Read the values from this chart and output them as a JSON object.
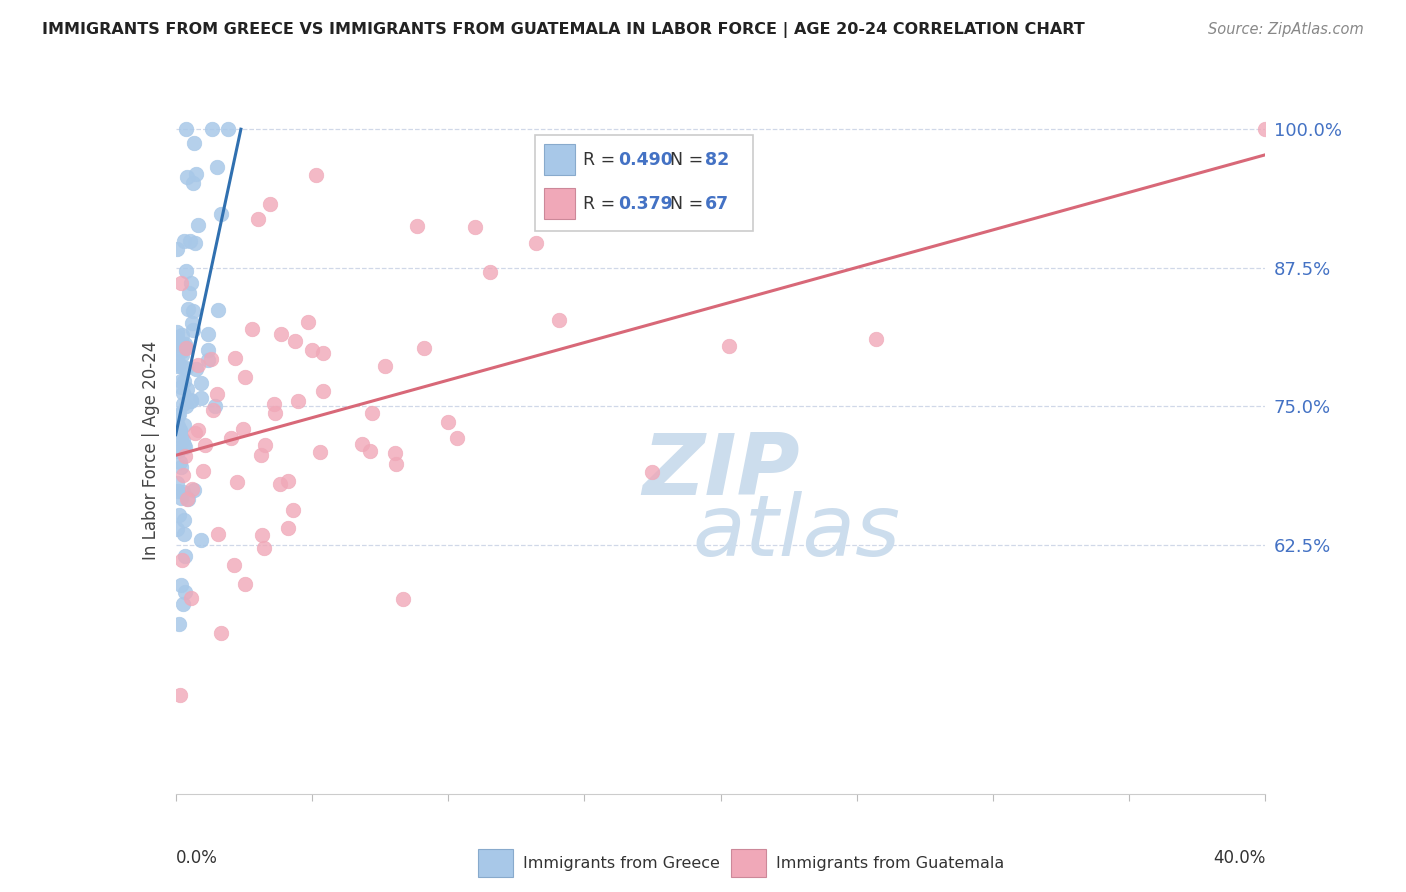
{
  "title": "IMMIGRANTS FROM GREECE VS IMMIGRANTS FROM GUATEMALA IN LABOR FORCE | AGE 20-24 CORRELATION CHART",
  "source": "Source: ZipAtlas.com",
  "ylabel_label": "In Labor Force | Age 20-24",
  "blue_color": "#a8c8e8",
  "pink_color": "#f0a8b8",
  "blue_line_color": "#3070b0",
  "pink_line_color": "#d86878",
  "blue_R": 0.49,
  "blue_N": 82,
  "pink_R": 0.379,
  "pink_N": 67,
  "right_tick_color": "#4472c4",
  "grid_color": "#d0d8e8",
  "title_color": "#222222",
  "source_color": "#888888",
  "watermark_color": "#ccdded",
  "xlim": [
    0.0,
    0.4
  ],
  "ylim": [
    0.4,
    1.02
  ],
  "yticks": [
    0.625,
    0.75,
    0.875,
    1.0
  ],
  "ytick_labels": [
    "62.5%",
    "75.0%",
    "87.5%",
    "100.0%"
  ],
  "xtick_labels_show": [
    "0.0%",
    "40.0%"
  ]
}
